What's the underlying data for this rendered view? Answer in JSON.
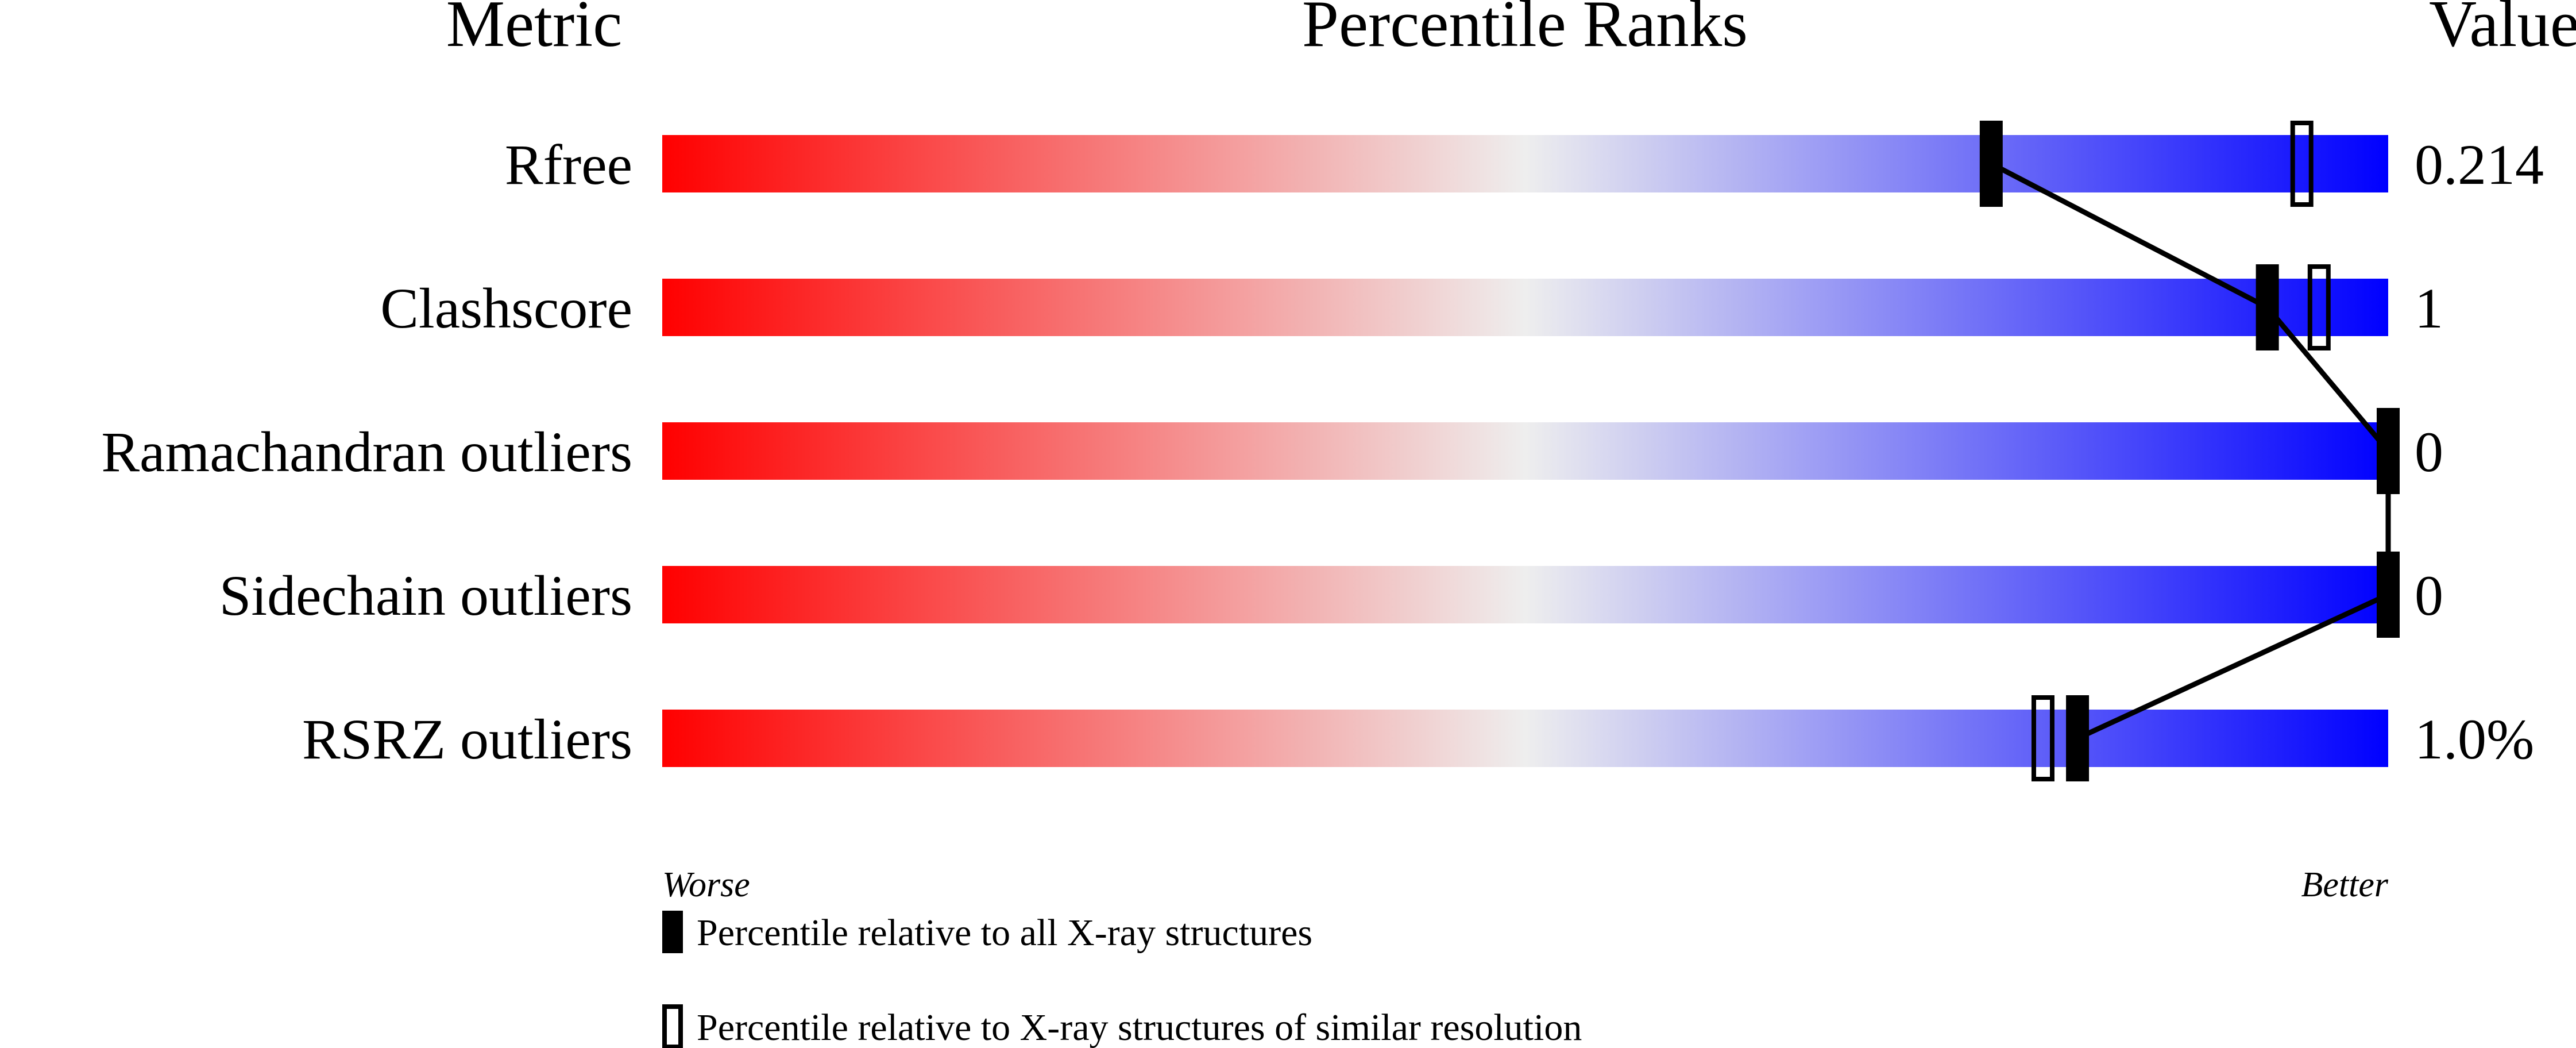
{
  "chart_data": {
    "type": "percentile-slider",
    "headers": {
      "metric": "Metric",
      "ranks": "Percentile Ranks",
      "value": "Value"
    },
    "xlim": [
      0,
      100
    ],
    "gradient_colors": {
      "worse": "#ff0000",
      "middle": "#eeeeee",
      "better": "#0000ff"
    },
    "metrics": [
      {
        "name": "Rfree",
        "value": "0.214",
        "percentile_all": 77,
        "percentile_similar": 95
      },
      {
        "name": "Clashscore",
        "value": "1",
        "percentile_all": 93,
        "percentile_similar": 96
      },
      {
        "name": "Ramachandran outliers",
        "value": "0",
        "percentile_all": 100,
        "percentile_similar": null
      },
      {
        "name": "Sidechain outliers",
        "value": "0",
        "percentile_all": 100,
        "percentile_similar": null
      },
      {
        "name": "RSRZ outliers",
        "value": "1.0%",
        "percentile_all": 82,
        "percentile_similar": 80
      }
    ],
    "axis_labels": {
      "left": "Worse",
      "right": "Better"
    },
    "legend": [
      {
        "marker": "filled",
        "label": "Percentile relative to all X-ray structures"
      },
      {
        "marker": "open",
        "label": "Percentile relative to X-ray structures of similar resolution"
      }
    ]
  }
}
